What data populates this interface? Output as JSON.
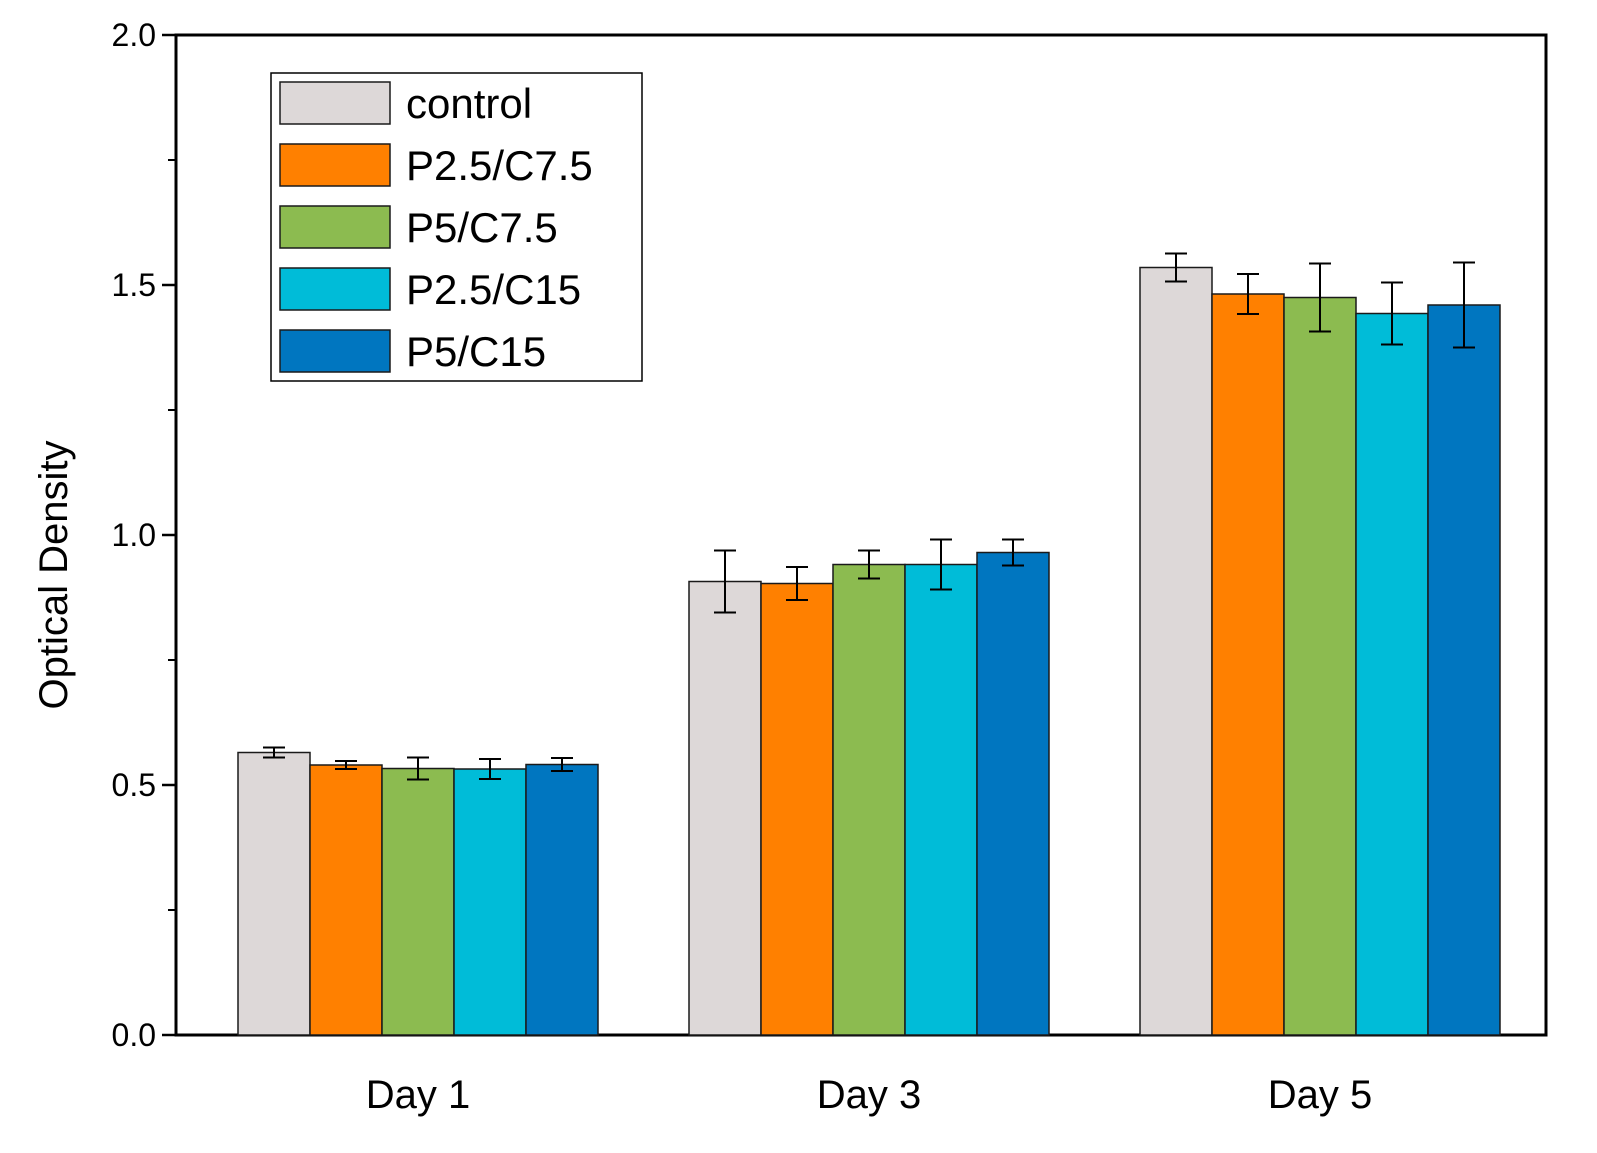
{
  "chart_data": {
    "type": "bar",
    "title": "",
    "xlabel": "",
    "ylabel": "Optical Density",
    "ylim": [
      0,
      2.0
    ],
    "yticks": [
      "0.0",
      "0.5",
      "1.0",
      "1.5",
      "2.0"
    ],
    "categories": [
      "Day 1",
      "Day 3",
      "Day 5"
    ],
    "legend_position": "top-left",
    "series": [
      {
        "name": "control",
        "color": "#ddd8d8",
        "values": [
          0.565,
          0.907,
          1.535
        ],
        "errors": [
          0.01,
          0.062,
          0.028
        ]
      },
      {
        "name": "P2.5/C7.5",
        "color": "#ff8000",
        "values": [
          0.54,
          0.903,
          1.482
        ],
        "errors": [
          0.008,
          0.033,
          0.04
        ]
      },
      {
        "name": "P5/C7.5",
        "color": "#8cbb50",
        "values": [
          0.533,
          0.941,
          1.475
        ],
        "errors": [
          0.022,
          0.028,
          0.068
        ]
      },
      {
        "name": "P2.5/C15",
        "color": "#00bcd8",
        "values": [
          0.532,
          0.941,
          1.443
        ],
        "errors": [
          0.02,
          0.05,
          0.062
        ]
      },
      {
        "name": "P5/C15",
        "color": "#0076c0",
        "values": [
          0.541,
          0.965,
          1.46
        ],
        "errors": [
          0.013,
          0.026,
          0.085
        ]
      }
    ]
  }
}
